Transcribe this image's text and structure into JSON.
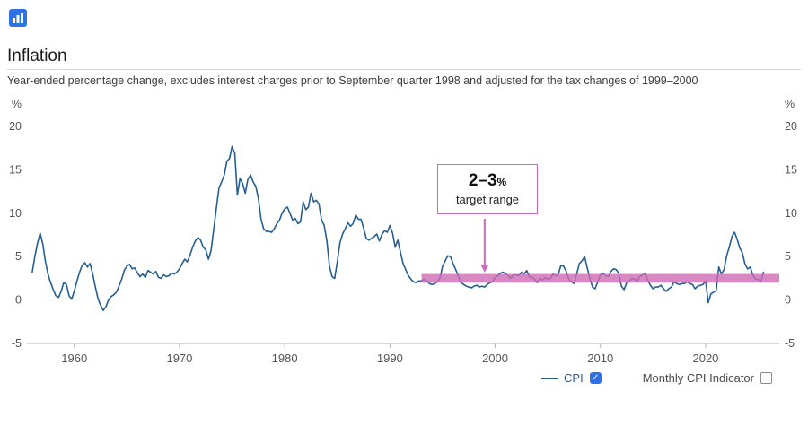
{
  "header": {
    "title": "Inflation",
    "subtitle": "Year-ended percentage change, excludes interest charges prior to September quarter 1998 and adjusted for the tax changes of 1999–2000"
  },
  "annotation": {
    "value": "2–3",
    "unit": "%",
    "text": "target range"
  },
  "chart_data": {
    "type": "line",
    "title": "Inflation",
    "subtitle": "Year-ended percentage change, excludes interest charges prior to September quarter 1998 and adjusted for the tax changes of 1999–2000",
    "ylabel": "%",
    "ylim": [
      -5,
      20
    ],
    "yticks": [
      -5,
      0,
      5,
      10,
      15,
      20
    ],
    "xlim": [
      1955.5,
      2027
    ],
    "xticks": [
      1960,
      1970,
      1980,
      1990,
      2000,
      2010,
      2020
    ],
    "grid": false,
    "legend_position": "bottom-right",
    "target_band": {
      "y_from": 2,
      "y_to": 3,
      "from_year": 1993,
      "arrow_year": 1999,
      "color": "#ce6cb5",
      "label": "2–3% target range"
    },
    "series": [
      {
        "name": "CPI",
        "color": "#255e91",
        "start_year": 1956,
        "period": "quarterly",
        "values": [
          3.2,
          5.0,
          6.5,
          7.7,
          6.5,
          4.5,
          3.0,
          2.0,
          1.2,
          0.5,
          0.3,
          1.0,
          2.0,
          1.8,
          0.5,
          0.1,
          1.0,
          2.2,
          3.2,
          4.0,
          4.3,
          3.8,
          4.2,
          3.0,
          1.5,
          0.2,
          -0.6,
          -1.2,
          -0.8,
          0.0,
          0.4,
          0.6,
          0.9,
          1.6,
          2.4,
          3.4,
          3.9,
          4.1,
          3.6,
          3.7,
          3.1,
          2.7,
          3.0,
          2.6,
          3.4,
          3.2,
          3.0,
          3.3,
          2.6,
          2.5,
          2.9,
          2.7,
          2.8,
          3.1,
          3.0,
          3.2,
          3.6,
          4.2,
          4.7,
          4.4,
          5.2,
          6.1,
          6.8,
          7.2,
          6.9,
          6.1,
          5.8,
          4.7,
          5.7,
          8.1,
          10.6,
          12.9,
          13.6,
          14.4,
          16.0,
          16.3,
          17.7,
          16.9,
          12.1,
          14.0,
          13.4,
          12.3,
          13.9,
          14.4,
          13.6,
          13.1,
          11.7,
          9.3,
          8.2,
          7.9,
          7.9,
          7.8,
          8.2,
          8.8,
          9.2,
          10.0,
          10.5,
          10.7,
          10.0,
          9.2,
          9.4,
          8.8,
          9.0,
          11.3,
          10.4,
          10.7,
          12.3,
          11.3,
          11.5,
          11.1,
          9.2,
          8.6,
          6.9,
          3.9,
          2.7,
          2.5,
          4.4,
          6.6,
          7.6,
          8.2,
          8.9,
          8.5,
          8.8,
          9.8,
          9.3,
          9.3,
          8.3,
          7.1,
          6.9,
          7.1,
          7.3,
          7.6,
          6.8,
          7.6,
          8.0,
          7.8,
          8.6,
          7.7,
          6.1,
          6.9,
          5.5,
          4.2,
          3.5,
          2.8,
          2.4,
          2.1,
          2.0,
          2.2,
          2.2,
          2.4,
          2.2,
          1.9,
          1.8,
          1.9,
          2.1,
          2.5,
          3.9,
          4.5,
          5.1,
          5.0,
          4.2,
          3.5,
          2.8,
          2.0,
          1.8,
          1.6,
          1.5,
          1.4,
          1.6,
          1.7,
          1.5,
          1.6,
          1.5,
          1.8,
          2.0,
          2.1,
          2.6,
          2.8,
          3.1,
          3.2,
          3.0,
          2.8,
          2.5,
          2.9,
          2.9,
          2.8,
          3.2,
          3.0,
          3.4,
          2.7,
          2.6,
          2.4,
          2.0,
          2.5,
          2.3,
          2.6,
          2.4,
          2.5,
          3.0,
          2.8,
          3.0,
          4.0,
          3.9,
          3.3,
          2.4,
          2.1,
          1.9,
          3.0,
          4.2,
          4.5,
          5.0,
          3.7,
          2.5,
          1.5,
          1.3,
          2.1,
          2.9,
          3.1,
          2.8,
          2.7,
          3.3,
          3.6,
          3.5,
          3.1,
          1.6,
          1.2,
          2.0,
          2.2,
          2.5,
          2.4,
          2.2,
          2.7,
          2.9,
          3.0,
          2.3,
          1.7,
          1.3,
          1.5,
          1.5,
          1.7,
          1.3,
          1.0,
          1.3,
          1.5,
          2.1,
          1.9,
          1.8,
          1.9,
          1.9,
          2.1,
          1.9,
          1.8,
          1.3,
          1.6,
          1.7,
          1.8,
          2.2,
          -0.3,
          0.7,
          0.9,
          1.1,
          3.8,
          3.0,
          3.5,
          5.1,
          6.1,
          7.3,
          7.8,
          7.0,
          6.0,
          5.4,
          4.1,
          3.6,
          3.8,
          2.8,
          2.4,
          2.4,
          2.1,
          3.2
        ]
      }
    ],
    "legend": [
      {
        "label": "CPI",
        "checked": true
      },
      {
        "label": "Monthly CPI Indicator",
        "checked": false
      }
    ]
  }
}
